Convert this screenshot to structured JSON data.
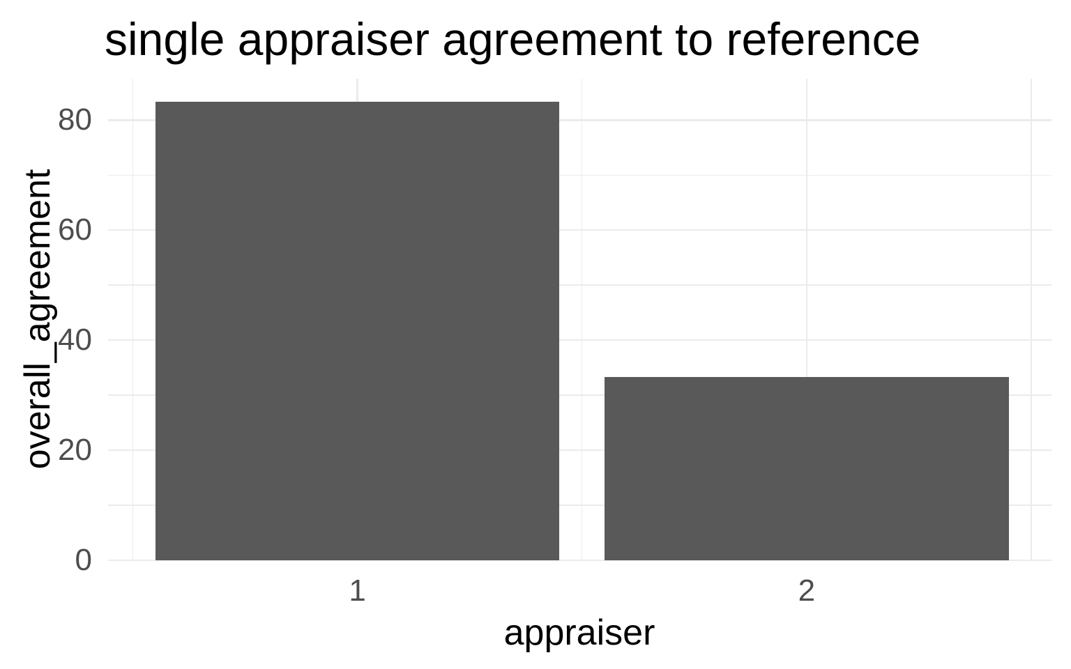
{
  "chart_data": {
    "type": "bar",
    "title": "single appraiser agreement to reference",
    "xlabel": "appraiser",
    "ylabel": "overall_agreement",
    "categories": [
      "1",
      "2"
    ],
    "values": [
      83.3,
      33.3
    ],
    "bar_width": 0.9,
    "x_positions": [
      1,
      2
    ],
    "xlim": [
      0.445,
      2.545
    ],
    "ylim": [
      0,
      87.5
    ],
    "y_major_breaks": [
      0,
      20,
      40,
      60,
      80
    ],
    "y_minor_breaks": [
      10,
      30,
      50,
      70
    ],
    "x_major_breaks": [
      1,
      2
    ],
    "x_minor_breaks": [
      0.5,
      1.5,
      2.5
    ],
    "y_tick_labels": [
      "0",
      "20",
      "40",
      "60",
      "80"
    ],
    "x_tick_labels": [
      "1",
      "2"
    ],
    "grid": true,
    "legend_position": "none",
    "colors": {
      "bar_fill": "#595959",
      "grid_major": "#EBEBEB",
      "grid_minor": "#EBEBEB",
      "tick_label": "#4D4D4D",
      "axis_title": "#000000",
      "title": "#000000",
      "background": "#FFFFFF"
    }
  }
}
